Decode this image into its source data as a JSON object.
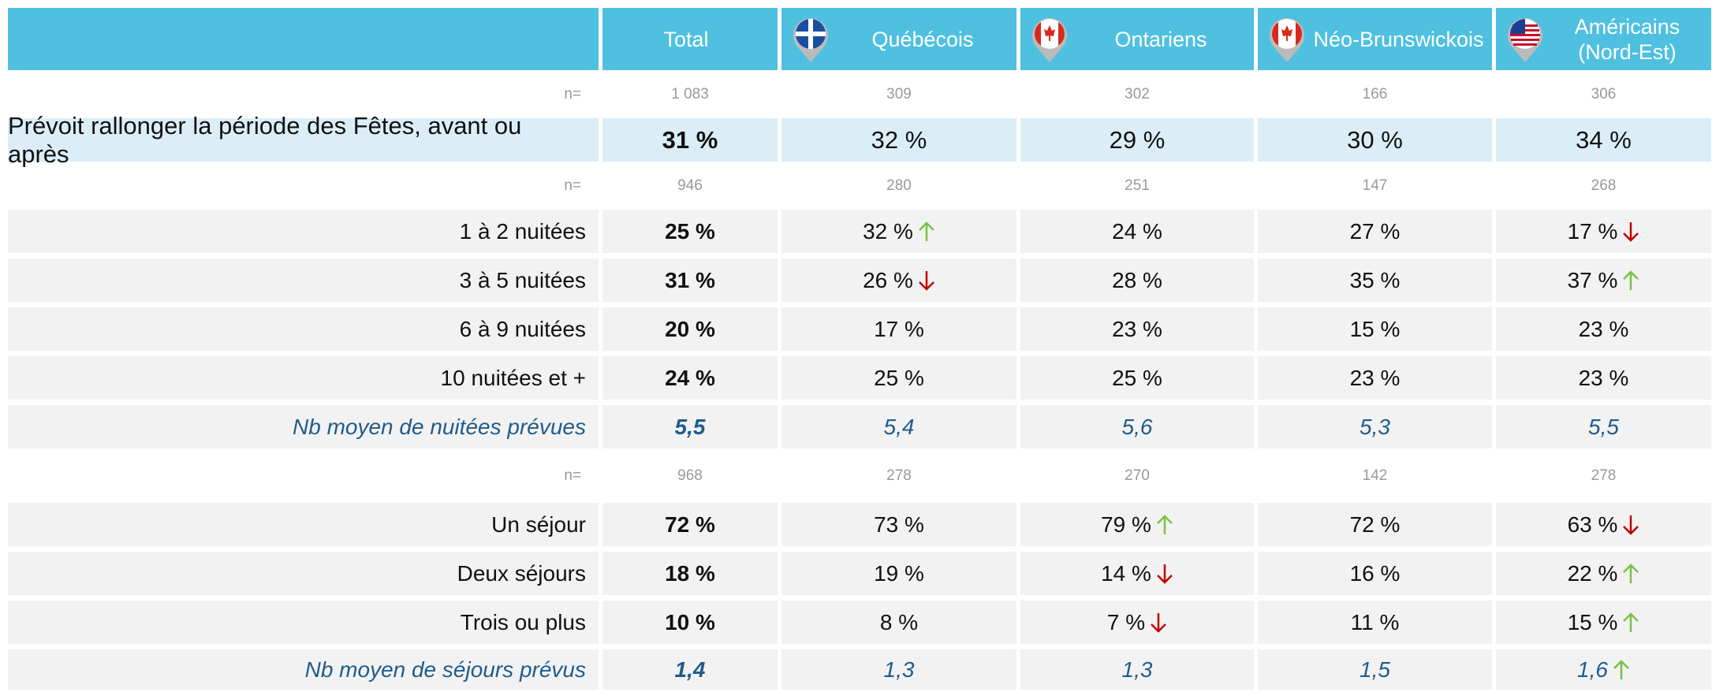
{
  "columns": [
    "Total",
    "Québécois",
    "Ontariens",
    "Néo-Brunswickois",
    "Américains (Nord-Est)"
  ],
  "rows": [
    {
      "label": "n=",
      "cells": [
        "1 083",
        "309",
        "302",
        "166",
        "306"
      ]
    },
    {
      "label": "Prévoit rallonger la période des Fêtes, avant ou après",
      "cells": [
        "31 %",
        "32 %",
        "29 %",
        "30 %",
        "34 %"
      ]
    },
    {
      "label": "n=",
      "cells": [
        "946",
        "280",
        "251",
        "147",
        "268"
      ]
    },
    {
      "label": "1 à 2 nuitées",
      "cells": [
        "25 %",
        "32 %",
        "24 %",
        "27 %",
        "17 %"
      ]
    },
    {
      "label": "3 à 5 nuitées",
      "cells": [
        "31 %",
        "26 %",
        "28 %",
        "35 %",
        "37 %"
      ]
    },
    {
      "label": "6 à 9 nuitées",
      "cells": [
        "20 %",
        "17 %",
        "23 %",
        "15 %",
        "23 %"
      ]
    },
    {
      "label": "10 nuitées et +",
      "cells": [
        "24 %",
        "25 %",
        "25 %",
        "23 %",
        "23 %"
      ]
    },
    {
      "label": "Nb moyen de nuitées prévues",
      "cells": [
        "5,5",
        "5,4",
        "5,6",
        "5,3",
        "5,5"
      ]
    },
    {
      "label": "n=",
      "cells": [
        "968",
        "278",
        "270",
        "142",
        "278"
      ]
    },
    {
      "label": "Un séjour",
      "cells": [
        "72 %",
        "73 %",
        "79 %",
        "72 %",
        "63 %"
      ]
    },
    {
      "label": "Deux séjours",
      "cells": [
        "18 %",
        "19 %",
        "14 %",
        "16 %",
        "22 %"
      ]
    },
    {
      "label": "Trois ou plus",
      "cells": [
        "10 %",
        "8 %",
        "7 %",
        "11 %",
        "15 %"
      ]
    },
    {
      "label": "Nb moyen de séjours prévus",
      "cells": [
        "1,4",
        "1,3",
        "1,3",
        "1,5",
        "1,6"
      ]
    }
  ]
}
